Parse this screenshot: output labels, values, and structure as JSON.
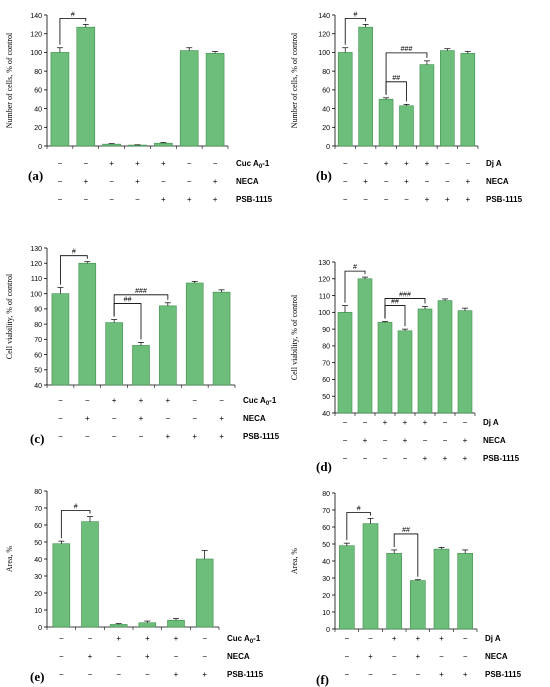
{
  "colors": {
    "bar": "#6DBE7A",
    "bar_edge": "#3F8F4D",
    "axis": "#000000",
    "text": "#000000"
  },
  "chart_data": [
    {
      "panel": "(a)",
      "type": "bar",
      "ylabel": "Number of cells, % of control",
      "ylim": [
        0,
        140
      ],
      "yticks": [
        0,
        20,
        40,
        60,
        80,
        100,
        120,
        140
      ],
      "values": [
        100,
        127,
        2,
        1,
        3,
        102,
        99
      ],
      "errors": [
        5,
        3,
        0.5,
        0.3,
        0.7,
        3,
        2
      ],
      "treatment_rows": [
        {
          "name": "Cuc A",
          "sub": "0",
          "suffix": "-1",
          "signs": [
            "−",
            "−",
            "+",
            "+",
            "+",
            "−",
            "−"
          ]
        },
        {
          "name": "NECA",
          "sub": "",
          "suffix": "",
          "signs": [
            "−",
            "+",
            "−",
            "+",
            "−",
            "−",
            "+"
          ]
        },
        {
          "name": "PSB-1115",
          "sub": "",
          "suffix": "",
          "signs": [
            "−",
            "−",
            "−",
            "−",
            "+",
            "+",
            "+"
          ]
        }
      ],
      "annotations": [
        {
          "label": "#",
          "from": 0,
          "to": 1
        }
      ]
    },
    {
      "panel": "(b)",
      "type": "bar",
      "ylabel": "Number of cells, % of control",
      "ylim": [
        0,
        140
      ],
      "yticks": [
        0,
        20,
        40,
        60,
        80,
        100,
        120,
        140
      ],
      "values": [
        100,
        127,
        50,
        43,
        87,
        102,
        99
      ],
      "errors": [
        5,
        3,
        1.5,
        1.5,
        4,
        2,
        2
      ],
      "treatment_rows": [
        {
          "name": "Dj A",
          "sub": "",
          "suffix": "",
          "signs": [
            "−",
            "−",
            "+",
            "+",
            "+",
            "−",
            "−"
          ]
        },
        {
          "name": "NECA",
          "sub": "",
          "suffix": "",
          "signs": [
            "−",
            "+",
            "−",
            "+",
            "−",
            "−",
            "+"
          ]
        },
        {
          "name": "PSB-1115",
          "sub": "",
          "suffix": "",
          "signs": [
            "−",
            "−",
            "−",
            "−",
            "+",
            "+",
            "+"
          ]
        }
      ],
      "annotations": [
        {
          "label": "#",
          "from": 0,
          "to": 1
        },
        {
          "label": "##",
          "from": 2,
          "to": 3
        },
        {
          "label": "###",
          "from": 2,
          "to": 4
        }
      ]
    },
    {
      "panel": "(c)",
      "type": "bar",
      "ylabel": "Cell viability, % of control",
      "ylim": [
        40,
        130
      ],
      "yticks": [
        40,
        50,
        60,
        70,
        80,
        90,
        100,
        110,
        120,
        130
      ],
      "values": [
        100,
        120,
        81,
        66,
        92,
        107,
        101
      ],
      "errors": [
        4,
        1,
        2,
        2,
        2,
        1,
        1.5
      ],
      "treatment_rows": [
        {
          "name": "Cuc A",
          "sub": "0",
          "suffix": "-1",
          "signs": [
            "−",
            "−",
            "+",
            "+",
            "+",
            "−",
            "−"
          ]
        },
        {
          "name": "NECA",
          "sub": "",
          "suffix": "",
          "signs": [
            "−",
            "+",
            "−",
            "+",
            "−",
            "−",
            "+"
          ]
        },
        {
          "name": "PSB-1115",
          "sub": "",
          "suffix": "",
          "signs": [
            "−",
            "−",
            "−",
            "−",
            "+",
            "+",
            "+"
          ]
        }
      ],
      "annotations": [
        {
          "label": "#",
          "from": 0,
          "to": 1
        },
        {
          "label": "##",
          "from": 2,
          "to": 3
        },
        {
          "label": "###",
          "from": 2,
          "to": 4
        }
      ]
    },
    {
      "panel": "(d)",
      "type": "bar",
      "ylabel": "Cell viability, % of control",
      "ylim": [
        40,
        130
      ],
      "yticks": [
        40,
        50,
        60,
        70,
        80,
        90,
        100,
        110,
        120,
        130
      ],
      "values": [
        100,
        120,
        94,
        89,
        102,
        107,
        101
      ],
      "errors": [
        4,
        1,
        0.5,
        1,
        1.5,
        1,
        1.5
      ],
      "treatment_rows": [
        {
          "name": "Dj A",
          "sub": "",
          "suffix": "",
          "signs": [
            "−",
            "−",
            "+",
            "+",
            "+",
            "−",
            "−"
          ]
        },
        {
          "name": "NECA",
          "sub": "",
          "suffix": "",
          "signs": [
            "−",
            "+",
            "−",
            "+",
            "−",
            "−",
            "+"
          ]
        },
        {
          "name": "PSB-1115",
          "sub": "",
          "suffix": "",
          "signs": [
            "−",
            "−",
            "−",
            "−",
            "+",
            "+",
            "+"
          ]
        }
      ],
      "annotations": [
        {
          "label": "#",
          "from": 0,
          "to": 1
        },
        {
          "label": "##",
          "from": 2,
          "to": 3
        },
        {
          "label": "###",
          "from": 2,
          "to": 4
        }
      ]
    },
    {
      "panel": "(e)",
      "type": "bar",
      "ylabel": "Area, %",
      "ylim": [
        0,
        80
      ],
      "yticks": [
        0,
        10,
        20,
        30,
        40,
        50,
        60,
        70,
        80
      ],
      "values": [
        49,
        62,
        1.5,
        2.5,
        4,
        40
      ],
      "errors": [
        1.5,
        3,
        0.5,
        1,
        1,
        5
      ],
      "treatment_rows": [
        {
          "name": "Cuc A",
          "sub": "0",
          "suffix": "-1",
          "signs": [
            "−",
            "−",
            "+",
            "+",
            "+",
            "−"
          ]
        },
        {
          "name": "NECA",
          "sub": "",
          "suffix": "",
          "signs": [
            "−",
            "+",
            "−",
            "+",
            "−",
            "−"
          ]
        },
        {
          "name": "PSB-1115",
          "sub": "",
          "suffix": "",
          "signs": [
            "−",
            "−",
            "−",
            "−",
            "+",
            "+"
          ]
        }
      ],
      "annotations": [
        {
          "label": "#",
          "from": 0,
          "to": 1
        }
      ]
    },
    {
      "panel": "(f)",
      "type": "bar",
      "ylabel": "Area, %",
      "ylim": [
        0,
        80
      ],
      "yticks": [
        0,
        10,
        20,
        30,
        40,
        50,
        60,
        70,
        80
      ],
      "values": [
        49,
        62,
        44.5,
        28.5,
        47,
        44.5
      ],
      "errors": [
        1.5,
        3,
        2,
        0.5,
        1,
        2
      ],
      "treatment_rows": [
        {
          "name": "Dj A",
          "sub": "",
          "suffix": "",
          "signs": [
            "−",
            "−",
            "+",
            "+",
            "+",
            "−"
          ]
        },
        {
          "name": "NECA",
          "sub": "",
          "suffix": "",
          "signs": [
            "−",
            "+",
            "−",
            "+",
            "−",
            "−"
          ]
        },
        {
          "name": "PSB-1115",
          "sub": "",
          "suffix": "",
          "signs": [
            "−",
            "−",
            "−",
            "−",
            "+",
            "+"
          ]
        }
      ],
      "annotations": [
        {
          "label": "#",
          "from": 0,
          "to": 1
        },
        {
          "label": "##",
          "from": 2,
          "to": 3
        }
      ]
    }
  ]
}
